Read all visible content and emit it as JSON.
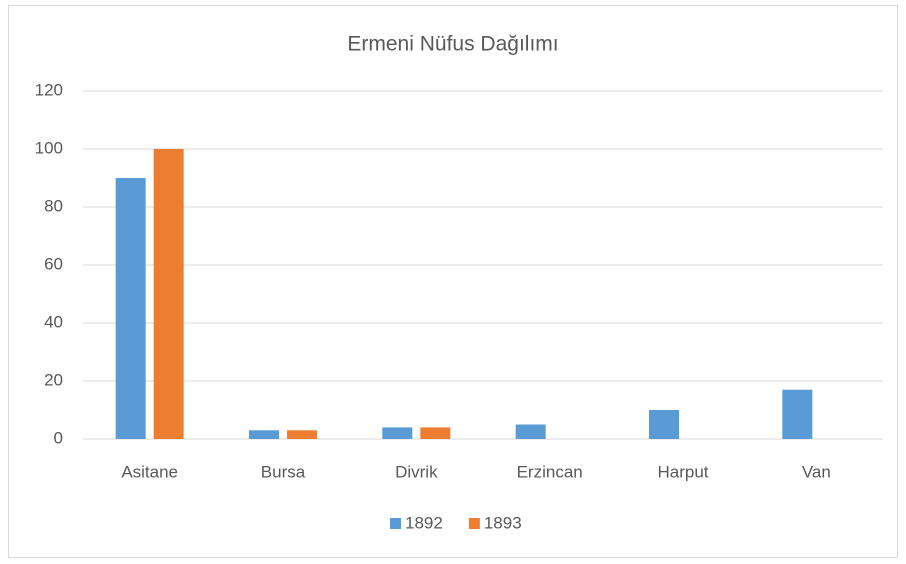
{
  "chart_data": {
    "type": "bar",
    "title": "Ermeni Nüfus Dağılımı",
    "categories": [
      "Asitane",
      "Bursa",
      "Divrik",
      "Erzincan",
      "Harput",
      "Van"
    ],
    "series": [
      {
        "name": "1892",
        "color": "#5b9bd5",
        "values": [
          90,
          3,
          4,
          5,
          10,
          17
        ]
      },
      {
        "name": "1893",
        "color": "#ed7d31",
        "values": [
          100,
          3,
          4,
          null,
          null,
          null
        ]
      }
    ],
    "ylim": [
      0,
      120
    ],
    "yticks": [
      0,
      20,
      40,
      60,
      80,
      100,
      120
    ],
    "grid": true,
    "legend": "bottom"
  }
}
